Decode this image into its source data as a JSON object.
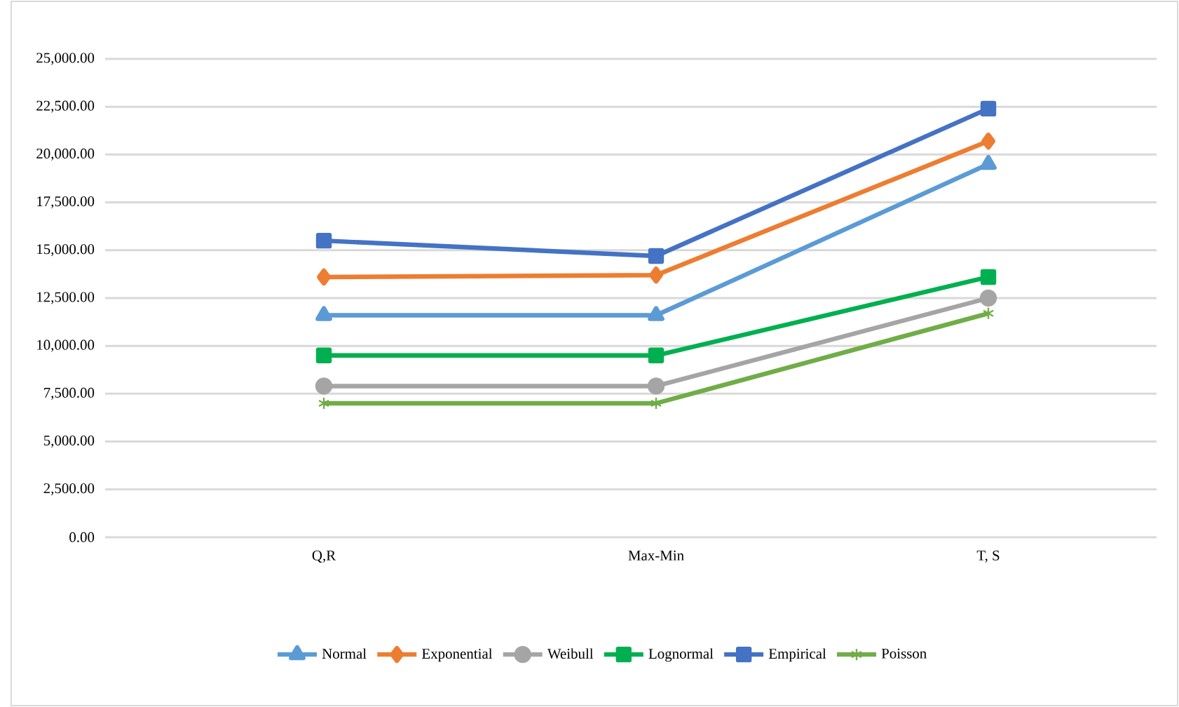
{
  "chart_data": {
    "type": "line",
    "categories": [
      "Q,R",
      "Max-Min",
      "T, S"
    ],
    "series": [
      {
        "name": "Normal",
        "color": "#5b9bd5",
        "marker": "triangle",
        "values": [
          11600,
          11600,
          19500
        ]
      },
      {
        "name": "Exponential",
        "color": "#ed7d31",
        "marker": "diamond",
        "values": [
          13600,
          13700,
          20700
        ]
      },
      {
        "name": "Weibull",
        "color": "#a5a5a5",
        "marker": "circle",
        "values": [
          7900,
          7900,
          12500
        ]
      },
      {
        "name": "Lognormal",
        "color": "#00b050",
        "marker": "square",
        "values": [
          9500,
          9500,
          13600
        ]
      },
      {
        "name": "Empirical",
        "color": "#4472c4",
        "marker": "square",
        "values": [
          15500,
          14700,
          22400
        ]
      },
      {
        "name": "Poisson",
        "color": "#70ad47",
        "marker": "cross",
        "values": [
          7000,
          7000,
          11700
        ]
      }
    ],
    "ylim": [
      0,
      25000
    ],
    "yticks": [
      {
        "value": 0,
        "label": "0.00"
      },
      {
        "value": 2500,
        "label": "2,500.00"
      },
      {
        "value": 5000,
        "label": "5,000.00"
      },
      {
        "value": 7500,
        "label": "7,500.00"
      },
      {
        "value": 10000,
        "label": "10,000.00"
      },
      {
        "value": 12500,
        "label": "12,500.00"
      },
      {
        "value": 15000,
        "label": "15,000.00"
      },
      {
        "value": 17500,
        "label": "17,500.00"
      },
      {
        "value": 20000,
        "label": "20,000.00"
      },
      {
        "value": 22500,
        "label": "22,500.00"
      },
      {
        "value": 25000,
        "label": "25,000.00"
      }
    ],
    "grid": "y",
    "legend": "bottom",
    "line_style": "solid"
  }
}
